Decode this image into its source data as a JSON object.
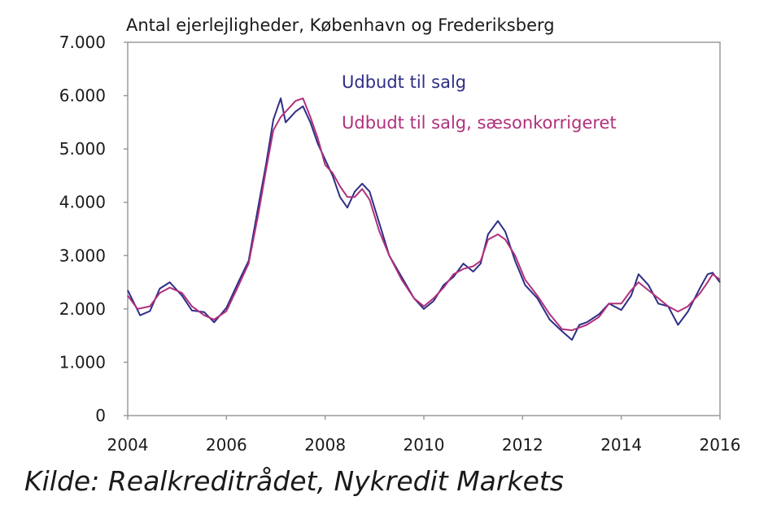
{
  "chart_data": {
    "type": "line",
    "title": "Antal ejerlejligheder, København og Frederiksberg",
    "xlabel": "",
    "ylabel": "",
    "xlim": [
      2004,
      2016
    ],
    "ylim": [
      0,
      7000
    ],
    "x_ticks": [
      {
        "value": 2004,
        "label": "2004"
      },
      {
        "value": 2006,
        "label": "2006"
      },
      {
        "value": 2008,
        "label": "2008"
      },
      {
        "value": 2010,
        "label": "2010"
      },
      {
        "value": 2012,
        "label": "2012"
      },
      {
        "value": 2014,
        "label": "2014"
      },
      {
        "value": 2016,
        "label": "2016"
      }
    ],
    "y_ticks": [
      {
        "value": 0,
        "label": "0"
      },
      {
        "value": 1000,
        "label": "1.000"
      },
      {
        "value": 2000,
        "label": "2.000"
      },
      {
        "value": 3000,
        "label": "3.000"
      },
      {
        "value": 4000,
        "label": "4.000"
      },
      {
        "value": 5000,
        "label": "5.000"
      },
      {
        "value": 6000,
        "label": "6.000"
      },
      {
        "value": 7000,
        "label": "7.000"
      }
    ],
    "grid": false,
    "legend": "top-right",
    "series": [
      {
        "name": "Udbudt til salg",
        "color": "#2e2e86",
        "points": [
          [
            2004.0,
            2350
          ],
          [
            2004.25,
            1880
          ],
          [
            2004.45,
            1960
          ],
          [
            2004.65,
            2380
          ],
          [
            2004.85,
            2500
          ],
          [
            2005.1,
            2250
          ],
          [
            2005.3,
            1970
          ],
          [
            2005.55,
            1940
          ],
          [
            2005.75,
            1750
          ],
          [
            2006.0,
            2020
          ],
          [
            2006.25,
            2520
          ],
          [
            2006.45,
            2900
          ],
          [
            2006.65,
            3950
          ],
          [
            2006.8,
            4700
          ],
          [
            2006.95,
            5550
          ],
          [
            2007.1,
            5950
          ],
          [
            2007.2,
            5500
          ],
          [
            2007.4,
            5700
          ],
          [
            2007.55,
            5800
          ],
          [
            2007.7,
            5500
          ],
          [
            2007.85,
            5100
          ],
          [
            2008.0,
            4800
          ],
          [
            2008.15,
            4500
          ],
          [
            2008.3,
            4100
          ],
          [
            2008.45,
            3900
          ],
          [
            2008.6,
            4200
          ],
          [
            2008.75,
            4350
          ],
          [
            2008.9,
            4200
          ],
          [
            2009.1,
            3600
          ],
          [
            2009.3,
            3000
          ],
          [
            2009.55,
            2600
          ],
          [
            2009.8,
            2200
          ],
          [
            2010.0,
            2000
          ],
          [
            2010.2,
            2150
          ],
          [
            2010.4,
            2450
          ],
          [
            2010.6,
            2600
          ],
          [
            2010.8,
            2850
          ],
          [
            2011.0,
            2700
          ],
          [
            2011.15,
            2850
          ],
          [
            2011.3,
            3400
          ],
          [
            2011.5,
            3650
          ],
          [
            2011.65,
            3450
          ],
          [
            2011.85,
            2900
          ],
          [
            2012.05,
            2450
          ],
          [
            2012.3,
            2200
          ],
          [
            2012.55,
            1800
          ],
          [
            2012.8,
            1580
          ],
          [
            2013.0,
            1420
          ],
          [
            2013.15,
            1700
          ],
          [
            2013.3,
            1750
          ],
          [
            2013.55,
            1900
          ],
          [
            2013.75,
            2100
          ],
          [
            2014.0,
            1980
          ],
          [
            2014.2,
            2250
          ],
          [
            2014.35,
            2650
          ],
          [
            2014.55,
            2450
          ],
          [
            2014.75,
            2100
          ],
          [
            2014.95,
            2050
          ],
          [
            2015.15,
            1700
          ],
          [
            2015.35,
            1950
          ],
          [
            2015.6,
            2400
          ],
          [
            2015.75,
            2650
          ],
          [
            2015.85,
            2680
          ],
          [
            2016.0,
            2500
          ]
        ]
      },
      {
        "name": "Udbudt til salg, sæsonkorrigeret",
        "color": "#b0307c",
        "points": [
          [
            2004.0,
            2250
          ],
          [
            2004.2,
            2000
          ],
          [
            2004.45,
            2050
          ],
          [
            2004.65,
            2300
          ],
          [
            2004.85,
            2400
          ],
          [
            2005.1,
            2300
          ],
          [
            2005.3,
            2050
          ],
          [
            2005.55,
            1880
          ],
          [
            2005.75,
            1800
          ],
          [
            2006.0,
            1960
          ],
          [
            2006.25,
            2450
          ],
          [
            2006.45,
            2850
          ],
          [
            2006.65,
            3800
          ],
          [
            2006.8,
            4600
          ],
          [
            2006.95,
            5350
          ],
          [
            2007.1,
            5600
          ],
          [
            2007.25,
            5750
          ],
          [
            2007.4,
            5900
          ],
          [
            2007.55,
            5950
          ],
          [
            2007.7,
            5600
          ],
          [
            2007.85,
            5200
          ],
          [
            2008.0,
            4700
          ],
          [
            2008.15,
            4550
          ],
          [
            2008.3,
            4300
          ],
          [
            2008.45,
            4100
          ],
          [
            2008.6,
            4100
          ],
          [
            2008.75,
            4250
          ],
          [
            2008.9,
            4050
          ],
          [
            2009.1,
            3450
          ],
          [
            2009.3,
            3000
          ],
          [
            2009.55,
            2550
          ],
          [
            2009.8,
            2200
          ],
          [
            2010.0,
            2050
          ],
          [
            2010.2,
            2200
          ],
          [
            2010.4,
            2400
          ],
          [
            2010.6,
            2650
          ],
          [
            2010.8,
            2750
          ],
          [
            2011.0,
            2800
          ],
          [
            2011.15,
            2900
          ],
          [
            2011.3,
            3300
          ],
          [
            2011.5,
            3400
          ],
          [
            2011.65,
            3300
          ],
          [
            2011.85,
            3000
          ],
          [
            2012.05,
            2550
          ],
          [
            2012.3,
            2250
          ],
          [
            2012.55,
            1900
          ],
          [
            2012.8,
            1620
          ],
          [
            2013.0,
            1600
          ],
          [
            2013.15,
            1650
          ],
          [
            2013.3,
            1700
          ],
          [
            2013.55,
            1850
          ],
          [
            2013.75,
            2100
          ],
          [
            2014.0,
            2100
          ],
          [
            2014.2,
            2350
          ],
          [
            2014.35,
            2500
          ],
          [
            2014.55,
            2350
          ],
          [
            2014.75,
            2200
          ],
          [
            2014.95,
            2050
          ],
          [
            2015.15,
            1950
          ],
          [
            2015.35,
            2050
          ],
          [
            2015.6,
            2300
          ],
          [
            2015.75,
            2500
          ],
          [
            2015.85,
            2650
          ],
          [
            2016.0,
            2550
          ]
        ]
      }
    ]
  },
  "source_note": "Kilde: Realkreditrådet, Nykredit Markets"
}
